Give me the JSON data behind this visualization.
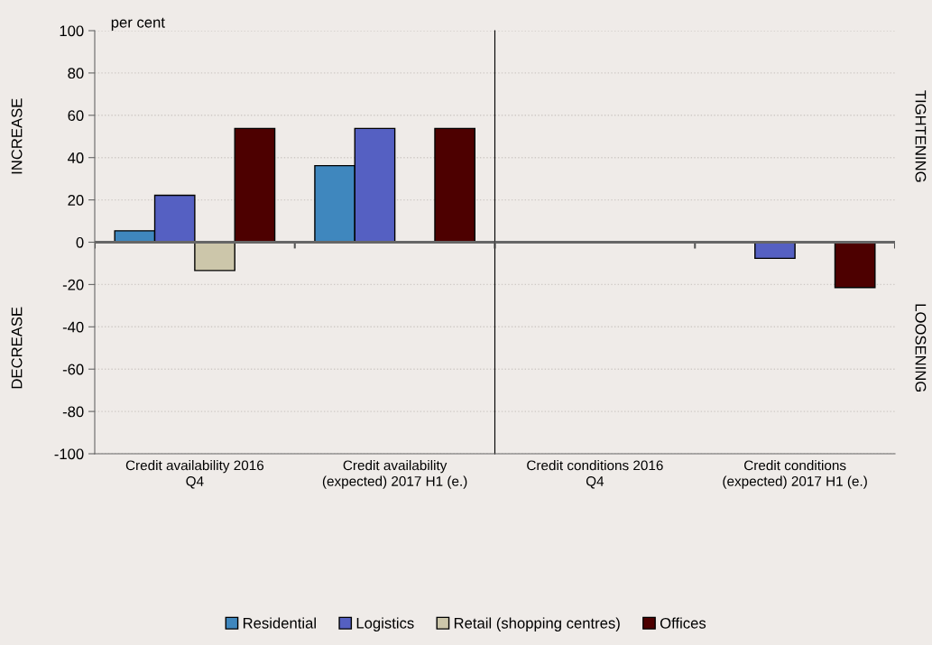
{
  "chart_data": [
    {
      "type": "bar",
      "ylabel": "per cent",
      "categories": [
        "Credit availability 2016\nQ4",
        "Credit availability\n(expected) 2017 H1 (e.)"
      ],
      "series": [
        {
          "name": "Residential",
          "color": "#3f87be",
          "values": [
            5.4,
            36.2
          ]
        },
        {
          "name": "Logistics",
          "color": "#5560c2",
          "values": [
            22.2,
            53.8
          ]
        },
        {
          "name": "Retail (shopping centres)",
          "color": "#ccc6aa",
          "values": [
            -13.4,
            null
          ]
        },
        {
          "name": "Offices",
          "color": "#4d0000",
          "values": [
            53.8,
            53.8
          ]
        }
      ],
      "ylim": [
        -100,
        100
      ],
      "yticks": [
        -100,
        -80,
        -60,
        -40,
        -20,
        0,
        20,
        40,
        60,
        80,
        100
      ],
      "grid": "y",
      "legend": "bottom",
      "annotations": [
        "INCREASE",
        "DECREASE"
      ]
    },
    {
      "type": "bar",
      "categories": [
        "Credit conditions 2016\nQ4",
        "Credit conditions\n(expected) 2017 H1 (e.)"
      ],
      "series": [
        {
          "name": "Residential",
          "color": "#3f87be",
          "values": [
            null,
            null
          ]
        },
        {
          "name": "Logistics",
          "color": "#5560c2",
          "values": [
            null,
            -7.6
          ]
        },
        {
          "name": "Retail (shopping centres)",
          "color": "#ccc6aa",
          "values": [
            null,
            null
          ]
        },
        {
          "name": "Offices",
          "color": "#4d0000",
          "values": [
            null,
            -21.4
          ]
        }
      ],
      "ylim": [
        -100,
        100
      ],
      "tick_labels": "x",
      "grid": "y",
      "legend": "bottom",
      "annotations": [
        "TIGHTENING",
        "LOOSENING"
      ]
    }
  ]
}
